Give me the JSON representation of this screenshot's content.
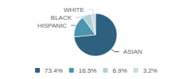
{
  "chart_data": {
    "type": "pie",
    "categories": [
      "ASIAN",
      "HISPANIC",
      "BLACK",
      "WHITE"
    ],
    "values": [
      73.4,
      16.5,
      6.9,
      3.2
    ],
    "value_labels": [
      "73.4%",
      "16.5%",
      "6.9%",
      "3.2%"
    ],
    "colors": [
      "#2e6080",
      "#4d95b0",
      "#b0cfd8",
      "#c8dde5"
    ],
    "legend": "bottom"
  }
}
